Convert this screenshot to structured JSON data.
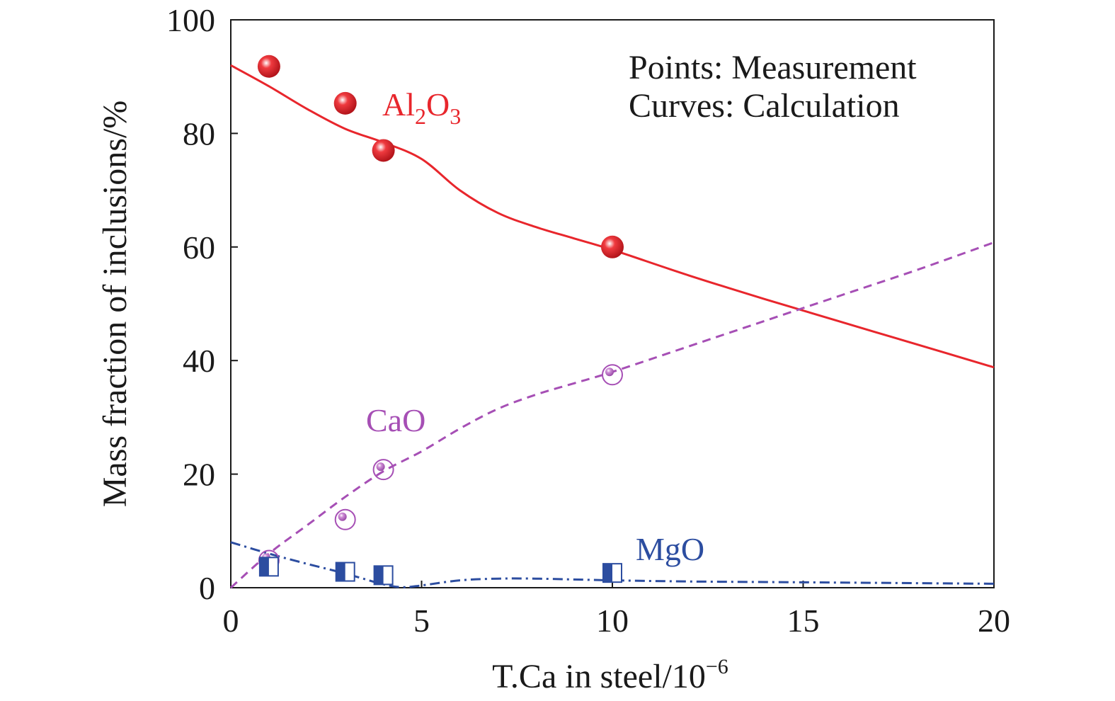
{
  "chart_data": {
    "type": "line",
    "xlabel": "T.Ca in steel/10",
    "xlabel_sup": "−6",
    "ylabel": "Mass fraction of inclusions/%",
    "xlim": [
      0,
      20
    ],
    "ylim": [
      0,
      100
    ],
    "xticks": [
      "0",
      "5",
      "10",
      "15",
      "20"
    ],
    "yticks": [
      "0",
      "20",
      "40",
      "60",
      "80",
      "100"
    ],
    "grid": false,
    "annotations": [
      "Points: Measurement",
      "Curves: Calculation"
    ],
    "colors": {
      "Al2O3": "#e8262c",
      "CaO": "#a64fb5",
      "MgO": "#2c4da0"
    },
    "series": [
      {
        "name": "Al2O3",
        "label": "Al",
        "label_sub1": "2",
        "label_mid": "O",
        "label_sub2": "3",
        "line_style": "solid",
        "points": {
          "x": [
            1,
            3,
            4,
            10
          ],
          "y": [
            91.8,
            85.3,
            77,
            60
          ]
        },
        "curve": {
          "x": [
            0,
            1,
            2,
            3,
            4,
            5,
            6,
            7,
            8,
            9,
            10,
            12,
            14,
            16,
            18,
            20
          ],
          "y": [
            92,
            88.3,
            84.3,
            80.8,
            78.4,
            75.5,
            70,
            66,
            63.5,
            61.5,
            59.5,
            55,
            50.8,
            46.8,
            42.8,
            38.8
          ]
        }
      },
      {
        "name": "CaO",
        "label": "CaO",
        "line_style": "dashed",
        "points": {
          "x": [
            1,
            3,
            4,
            10
          ],
          "y": [
            4.8,
            12,
            20.8,
            37.5
          ]
        },
        "curve": {
          "x": [
            0,
            1,
            2,
            3,
            4,
            5,
            6,
            7,
            8,
            9,
            10,
            12,
            14,
            16,
            18,
            20
          ],
          "y": [
            0,
            6,
            11,
            16,
            20.5,
            24,
            28,
            31.5,
            34,
            36,
            38,
            42.5,
            47,
            51.5,
            56,
            60.8
          ]
        }
      },
      {
        "name": "MgO",
        "label": "MgO",
        "line_style": "dashdot",
        "points": {
          "x": [
            1,
            3,
            4,
            10
          ],
          "y": [
            3.7,
            2.8,
            2.2,
            2.6
          ]
        },
        "curve": {
          "x": [
            0,
            1,
            2,
            3,
            4,
            4.5,
            5,
            6,
            7,
            8,
            10,
            12,
            14,
            16,
            18,
            20
          ],
          "y": [
            8,
            6,
            4.2,
            2.5,
            0.6,
            0.1,
            0.4,
            1.3,
            1.6,
            1.6,
            1.3,
            1.1,
            1,
            0.9,
            0.8,
            0.7
          ]
        }
      }
    ]
  }
}
